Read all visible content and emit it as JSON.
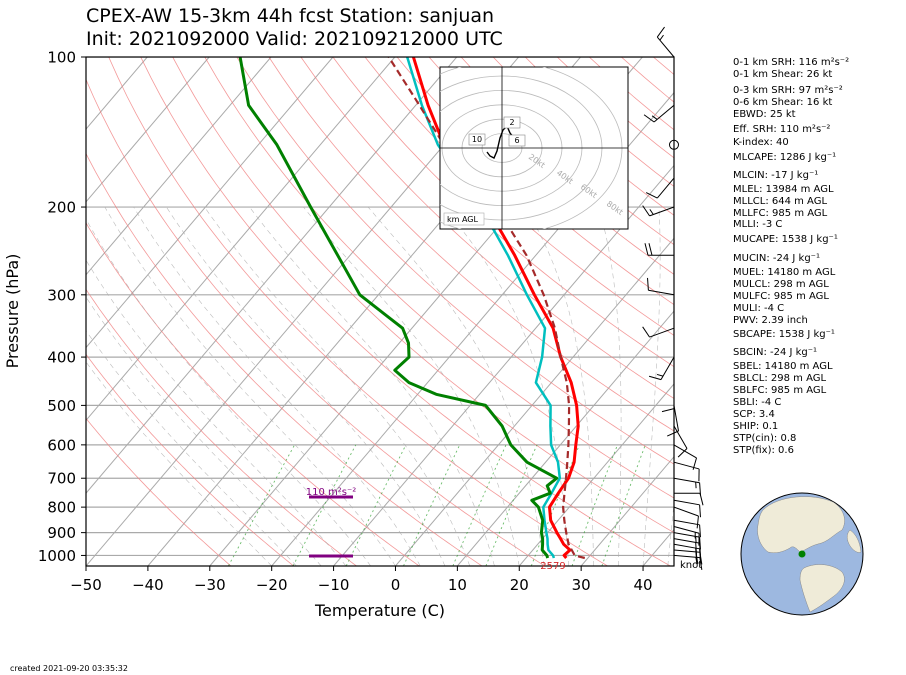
{
  "title_line1": "CPEX-AW 15-3km  44h fcst  Station: sanjuan",
  "title_line2": "Init: 2021092000  Valid: 202109212000 UTC",
  "created": "created 2021-09-20 03:35:32",
  "knot_label": "knot",
  "indices": [
    "0-1 km SRH: 116 m²s⁻²",
    "0-1 km Shear: 26 kt",
    "0-3 km SRH: 97 m²s⁻²",
    "0-6 km Shear: 16 kt",
    "EBWD: 25 kt",
    "Eff. SRH: 110 m²s⁻²",
    "K-index: 40",
    "MLCAPE: 1286 J kg⁻¹",
    "MLCIN: -17 J kg⁻¹",
    "MLEL: 13984 m AGL",
    "MLLCL: 644 m AGL",
    "MLLFC: 985 m AGL",
    "MLLI: -3 C",
    "MUCAPE: 1538 J kg⁻¹",
    "MUCIN: -24 J kg⁻¹",
    "MUEL: 14180 m AGL",
    "MULCL: 298 m AGL",
    "MULFC: 985 m AGL",
    "MULI: -4 C",
    "PWV: 2.39 inch",
    "SBCAPE: 1538 J kg⁻¹",
    "SBCIN: -24 J kg⁻¹",
    "SBEL: 14180 m AGL",
    "SBLCL: 298 m AGL",
    "SBLFC: 985 m AGL",
    "SBLI: -4 C",
    "SCP: 3.4",
    "SHIP: 0.1",
    "STP(cin): 0.8",
    "STP(fix): 0.6"
  ],
  "chart_data": {
    "type": "skew-t log-p",
    "xlabel": "Temperature (C)",
    "ylabel": "Pressure (hPa)",
    "xlim": [
      -50,
      45
    ],
    "ylim": [
      1050,
      100
    ],
    "xticks": [
      -50,
      -40,
      -30,
      -20,
      -10,
      0,
      10,
      20,
      30,
      40
    ],
    "yticks": [
      100,
      200,
      300,
      400,
      500,
      600,
      700,
      800,
      900,
      1000
    ],
    "surface_temp_label": "2579",
    "srh_label": "110 m²s⁻²",
    "colors": {
      "temperature": "#ff0000",
      "dewpoint": "#008000",
      "wetbulb": "#00bfbf",
      "parcel": "#a52a2a",
      "srh": "#800080",
      "dry_adiabats": "#f08080",
      "isotherms": "#aaaaaa",
      "mixing_ratio": "#2ca02c"
    },
    "temperature": {
      "pressure": [
        1012,
        1000,
        975,
        950,
        925,
        900,
        850,
        800,
        750,
        700,
        650,
        600,
        550,
        500,
        450,
        400,
        350,
        300,
        250,
        200,
        150,
        125,
        100
      ],
      "values": [
        26.5,
        25.8,
        26.0,
        24.2,
        22.9,
        21.5,
        18.8,
        16.8,
        16.3,
        15.9,
        14.6,
        12.5,
        10.3,
        7.2,
        3.2,
        -2.0,
        -7.2,
        -14.8,
        -23.4,
        -34.5,
        -50.0,
        -58.0,
        -67.0
      ]
    },
    "dewpoint": {
      "pressure": [
        1012,
        1000,
        975,
        950,
        925,
        900,
        850,
        800,
        775,
        750,
        725,
        700,
        650,
        600,
        550,
        500,
        475,
        450,
        425,
        400,
        375,
        350,
        300,
        250,
        200,
        150,
        125,
        100
      ],
      "values": [
        23.5,
        23.0,
        21.5,
        20.8,
        20.0,
        19.0,
        17.5,
        15.0,
        13.0,
        15.0,
        13.5,
        14.0,
        7.0,
        2.0,
        -2.0,
        -7.5,
        -17.0,
        -23.0,
        -27.0,
        -26.5,
        -28.5,
        -31.5,
        -43.0,
        -52.0,
        -63.0,
        -77.0,
        -87.0,
        -95.0
      ]
    },
    "wetbulb": {
      "pressure": [
        1012,
        1000,
        975,
        950,
        925,
        900,
        850,
        800,
        750,
        700,
        650,
        600,
        550,
        500,
        450,
        400,
        350,
        300,
        250,
        200,
        150,
        125,
        100
      ],
      "values": [
        24.5,
        24.0,
        22.5,
        21.6,
        20.8,
        19.8,
        17.8,
        15.8,
        15.2,
        14.5,
        12.0,
        8.5,
        5.8,
        3.0,
        -2.5,
        -5.0,
        -8.5,
        -16.0,
        -24.5,
        -35.5,
        -51.0,
        -59.0,
        -68.0
      ]
    },
    "parcel": {
      "pressure": [
        1012,
        1000,
        950,
        900,
        850,
        800,
        750,
        700,
        650,
        600,
        550,
        500,
        450,
        400,
        350,
        300,
        250,
        200,
        150,
        120,
        100
      ],
      "values": [
        29.5,
        27.5,
        25.0,
        23.0,
        21.0,
        19.0,
        17.3,
        15.5,
        13.5,
        11.3,
        8.8,
        6.0,
        2.5,
        -2.0,
        -6.9,
        -13.3,
        -21.5,
        -33.0,
        -50.0,
        -61.5,
        -71.0
      ]
    },
    "wind_barbs": {
      "pressure": [
        1000,
        975,
        950,
        925,
        900,
        875,
        850,
        800,
        775,
        750,
        700,
        650,
        600,
        550,
        500,
        450,
        400,
        350,
        300,
        250,
        200,
        175,
        150,
        125,
        100
      ],
      "direction": [
        95,
        95,
        100,
        100,
        100,
        105,
        100,
        110,
        100,
        90,
        100,
        105,
        120,
        150,
        170,
        180,
        210,
        250,
        280,
        270,
        250,
        220,
        180,
        230,
        320
      ],
      "speed_kt": [
        15,
        20,
        20,
        18,
        15,
        15,
        12,
        12,
        12,
        12,
        15,
        10,
        8,
        8,
        10,
        10,
        15,
        12,
        12,
        18,
        15,
        12,
        0,
        15,
        15
      ]
    },
    "hodograph": {
      "label": "km AGL",
      "ring_labels": [
        "20kt",
        "40kt",
        "60kt",
        "80kt"
      ],
      "height_labels": [
        "10",
        "2",
        "6"
      ]
    }
  }
}
